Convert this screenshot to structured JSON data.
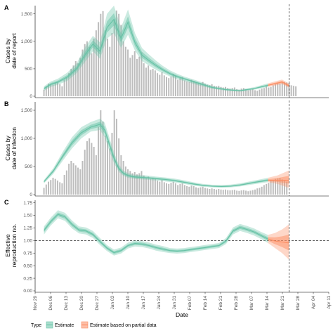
{
  "chart_data": [
    {
      "type": "bar",
      "panel": "A",
      "ylabel_lines": [
        "Cases by",
        "date of report"
      ],
      "ylim": [
        0,
        1650
      ],
      "yticks": [
        0,
        500,
        1000,
        1500
      ],
      "ytick_labels": [
        "0",
        "500",
        "1,000",
        "1,500"
      ],
      "bars": [
        120,
        180,
        230,
        220,
        210,
        250,
        260,
        220,
        180,
        300,
        340,
        420,
        500,
        560,
        640,
        600,
        700,
        850,
        950,
        1000,
        900,
        780,
        1050,
        1200,
        1350,
        1500,
        1550,
        1200,
        1050,
        900,
        1150,
        1400,
        1560,
        1500,
        1300,
        1000,
        900,
        850,
        700,
        750,
        820,
        680,
        720,
        800,
        600,
        520,
        560,
        480,
        500,
        470,
        420,
        390,
        440,
        380,
        350,
        330,
        360,
        410,
        380,
        300,
        330,
        350,
        290,
        270,
        260,
        300,
        280,
        250,
        230,
        240,
        260,
        230,
        210,
        200,
        220,
        190,
        180,
        190,
        170,
        160,
        170,
        150,
        140,
        150,
        160,
        130,
        120,
        140,
        150,
        130,
        110,
        120,
        130,
        110,
        100,
        120,
        140,
        150,
        180,
        160,
        170,
        200,
        220,
        240,
        230,
        250,
        260,
        250,
        240,
        200,
        190,
        180
      ],
      "estimate": {
        "x": [
          0,
          3,
          6,
          10,
          14,
          18,
          21,
          24,
          27,
          30,
          33,
          36,
          39,
          42,
          45,
          48,
          51,
          54,
          57,
          60,
          63,
          66,
          69,
          72,
          75,
          78,
          81,
          84,
          87,
          90,
          93,
          96,
          99,
          102,
          105
        ],
        "median": [
          140,
          220,
          260,
          350,
          500,
          780,
          950,
          820,
          1250,
          1400,
          1050,
          1350,
          980,
          750,
          650,
          560,
          480,
          410,
          360,
          320,
          280,
          240,
          200,
          160,
          140,
          120,
          110,
          100,
          120,
          140,
          170,
          200,
          230,
          260,
          190
        ],
        "lower90": [
          100,
          170,
          210,
          280,
          420,
          650,
          820,
          680,
          1050,
          1150,
          880,
          1120,
          830,
          640,
          560,
          480,
          420,
          360,
          310,
          280,
          240,
          200,
          170,
          135,
          118,
          100,
          92,
          84,
          100,
          118,
          145,
          170,
          195,
          220,
          155
        ],
        "upper90": [
          180,
          270,
          320,
          430,
          600,
          920,
          1100,
          980,
          1500,
          1650,
          1250,
          1580,
          1150,
          880,
          760,
          650,
          550,
          470,
          410,
          360,
          320,
          280,
          235,
          190,
          165,
          142,
          130,
          118,
          142,
          165,
          200,
          235,
          270,
          305,
          230
        ]
      },
      "partial_from_x": 96
    },
    {
      "type": "bar",
      "panel": "B",
      "ylabel_lines": [
        "Cases by",
        "date of infection"
      ],
      "ylim": [
        0,
        1650
      ],
      "yticks": [
        0,
        500,
        1000,
        1500
      ],
      "ytick_labels": [
        "0",
        "500",
        "1,000",
        "1,500"
      ],
      "bars": [
        120,
        180,
        230,
        260,
        300,
        280,
        250,
        220,
        200,
        350,
        430,
        550,
        600,
        560,
        520,
        480,
        450,
        600,
        800,
        950,
        1000,
        920,
        850,
        700,
        1200,
        1500,
        1300,
        1050,
        950,
        820,
        1100,
        1500,
        1350,
        1000,
        700,
        600,
        500,
        450,
        420,
        380,
        400,
        360,
        380,
        420,
        340,
        300,
        320,
        280,
        300,
        280,
        250,
        230,
        260,
        220,
        200,
        190,
        210,
        230,
        200,
        170,
        190,
        200,
        170,
        150,
        140,
        160,
        150,
        130,
        120,
        130,
        140,
        120,
        110,
        100,
        110,
        100,
        90,
        100,
        90,
        85,
        90,
        80,
        75,
        80,
        85,
        70,
        65,
        75,
        80,
        70,
        60,
        70,
        80,
        90,
        110,
        120,
        140,
        170,
        190,
        210,
        250,
        260,
        280,
        290,
        300,
        270,
        250,
        230
      ],
      "estimate": {
        "x": [
          0,
          4,
          8,
          12,
          16,
          20,
          24,
          26,
          28,
          30,
          32,
          34,
          36,
          38,
          40,
          44,
          48,
          52,
          56,
          60,
          64,
          68,
          72,
          76,
          80,
          84,
          88,
          92,
          96,
          100,
          105
        ],
        "median": [
          230,
          420,
          680,
          920,
          1100,
          1200,
          1250,
          1150,
          900,
          650,
          470,
          380,
          340,
          320,
          310,
          300,
          285,
          270,
          250,
          220,
          190,
          165,
          150,
          145,
          150,
          170,
          200,
          230,
          255,
          255,
          255
        ],
        "lower90": [
          200,
          370,
          600,
          820,
          1000,
          1120,
          1150,
          1020,
          780,
          560,
          410,
          335,
          300,
          285,
          275,
          265,
          250,
          235,
          215,
          190,
          160,
          140,
          128,
          122,
          128,
          145,
          172,
          198,
          222,
          190,
          120
        ],
        "upper90": [
          260,
          470,
          760,
          1020,
          1200,
          1290,
          1350,
          1280,
          1020,
          750,
          540,
          430,
          385,
          360,
          350,
          340,
          320,
          305,
          285,
          255,
          220,
          190,
          175,
          170,
          178,
          200,
          232,
          265,
          300,
          340,
          430
        ]
      },
      "partial_from_x": 96
    },
    {
      "type": "line",
      "panel": "C",
      "ylabel_lines": [
        "Effective",
        "reproduction no."
      ],
      "ylim": [
        0,
        1.8
      ],
      "yticks": [
        0,
        0.25,
        0.5,
        0.75,
        1.0,
        1.25,
        1.5,
        1.75
      ],
      "ytick_labels": [
        "0.00",
        "0.25",
        "0.50",
        "0.75",
        "1.00",
        "1.25",
        "1.50",
        "1.75"
      ],
      "reference_y": 1.0,
      "estimate": {
        "x": [
          0,
          3,
          6,
          9,
          12,
          15,
          18,
          21,
          24,
          27,
          30,
          33,
          36,
          39,
          42,
          45,
          48,
          51,
          54,
          57,
          60,
          63,
          66,
          69,
          72,
          75,
          78,
          81,
          84,
          87,
          90,
          93,
          96,
          99,
          102,
          105
        ],
        "median": [
          1.2,
          1.38,
          1.52,
          1.47,
          1.32,
          1.21,
          1.19,
          1.12,
          0.98,
          0.85,
          0.76,
          0.8,
          0.9,
          0.94,
          0.93,
          0.9,
          0.86,
          0.83,
          0.8,
          0.79,
          0.8,
          0.82,
          0.84,
          0.86,
          0.88,
          0.9,
          0.99,
          1.19,
          1.26,
          1.22,
          1.17,
          1.1,
          1.03,
          0.99,
          0.97,
          0.95
        ],
        "lower90": [
          1.12,
          1.3,
          1.44,
          1.39,
          1.24,
          1.14,
          1.12,
          1.05,
          0.91,
          0.79,
          0.7,
          0.74,
          0.84,
          0.88,
          0.87,
          0.84,
          0.8,
          0.77,
          0.75,
          0.74,
          0.75,
          0.77,
          0.79,
          0.81,
          0.83,
          0.85,
          0.93,
          1.12,
          1.19,
          1.15,
          1.1,
          1.03,
          0.95,
          0.85,
          0.75,
          0.62
        ],
        "upper90": [
          1.28,
          1.46,
          1.6,
          1.55,
          1.4,
          1.28,
          1.26,
          1.19,
          1.05,
          0.91,
          0.82,
          0.86,
          0.96,
          1.0,
          0.99,
          0.96,
          0.92,
          0.89,
          0.85,
          0.84,
          0.85,
          0.87,
          0.89,
          0.91,
          0.93,
          0.95,
          1.05,
          1.26,
          1.33,
          1.29,
          1.24,
          1.17,
          1.11,
          1.15,
          1.22,
          1.32
        ]
      },
      "partial_from_x": 96
    }
  ],
  "x_axis": {
    "title": "Date",
    "ticks": [
      "Nov 29",
      "Dec 06",
      "Dec 13",
      "Dec 20",
      "Dec 27",
      "Jan 03",
      "Jan 10",
      "Jan 17",
      "Jan 24",
      "Jan 31",
      "Feb 07",
      "Feb 14",
      "Feb 21",
      "Feb 28",
      "Mar 07",
      "Mar 14",
      "Mar 21",
      "Mar 28",
      "Apr 04",
      "Apr 11"
    ],
    "start": "Nov 29",
    "end": "Apr 11",
    "forecast_line_date": "Mar 24"
  },
  "legend": {
    "title": "Type",
    "items": [
      {
        "label": "Estimate",
        "color": "#66c2a5"
      },
      {
        "label": "Estimate based on partial data",
        "color": "#fc8d62"
      }
    ]
  },
  "panels": [
    "A",
    "B",
    "C"
  ],
  "colors": {
    "bar": "#bdbdbd",
    "estimate": "#66c2a5",
    "partial": "#fc8d62"
  }
}
